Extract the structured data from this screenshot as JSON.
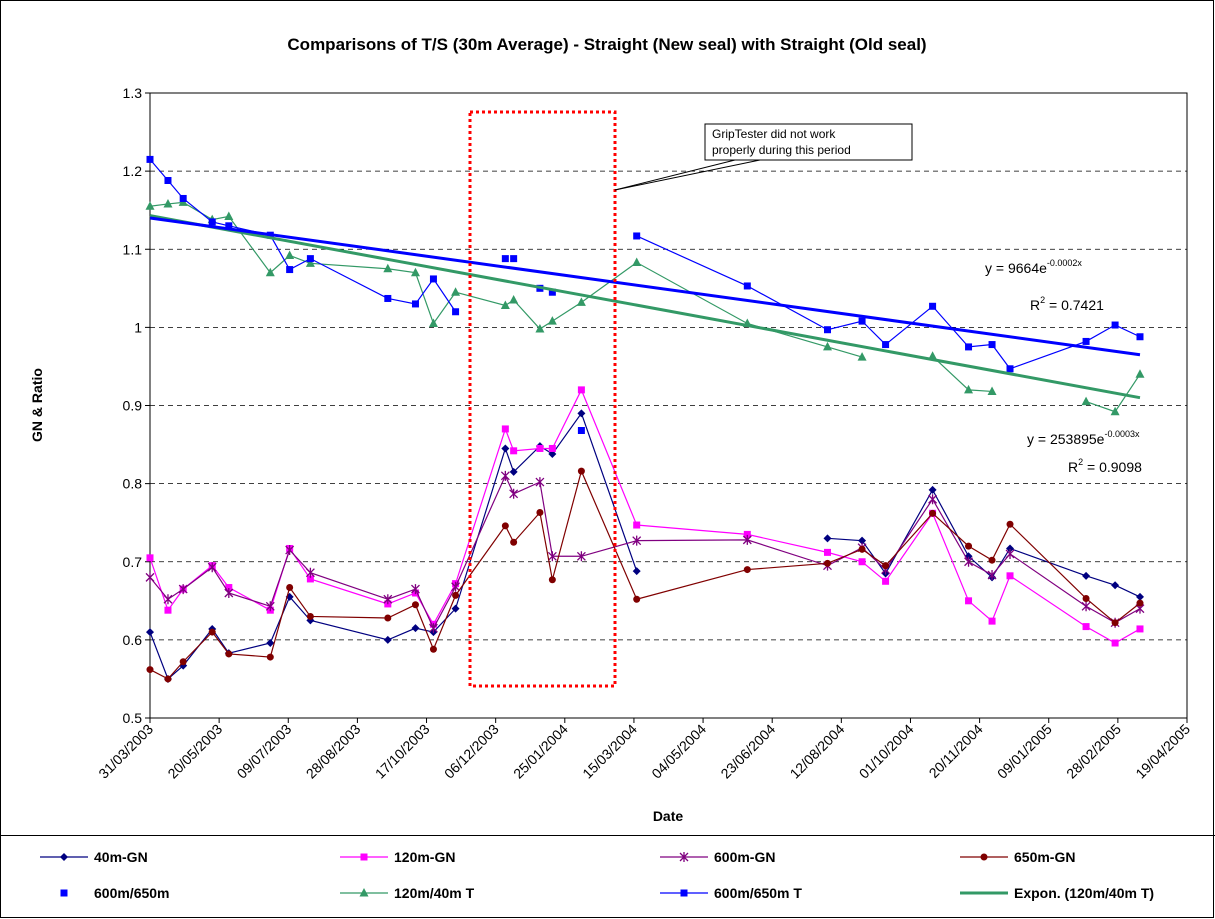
{
  "chart_data": {
    "type": "line",
    "title": "Comparisons of T/S (30m Average) - Straight (New seal) with Straight (Old seal)",
    "x_label": "Date",
    "y_label": "GN & Ratio",
    "x": [
      37711,
      37724,
      37735,
      37756,
      37768,
      37798,
      37812,
      37827,
      37883,
      37903,
      37916,
      37932,
      37968,
      37974,
      37993,
      38002,
      38023,
      38063,
      38143,
      38201,
      38226,
      38243,
      38277,
      38303,
      38320,
      38333,
      38388,
      38409,
      38427
    ],
    "xlim": [
      37711,
      38461
    ],
    "xticks": [
      {
        "value": 37711,
        "label": "31/03/2003"
      },
      {
        "value": 37761,
        "label": "20/05/2003"
      },
      {
        "value": 37811,
        "label": "09/07/2003"
      },
      {
        "value": 37861,
        "label": "28/08/2003"
      },
      {
        "value": 37911,
        "label": "17/10/2003"
      },
      {
        "value": 37961,
        "label": "06/12/2003"
      },
      {
        "value": 38011,
        "label": "25/01/2004"
      },
      {
        "value": 38061,
        "label": "15/03/2004"
      },
      {
        "value": 38111,
        "label": "04/05/2004"
      },
      {
        "value": 38161,
        "label": "23/06/2004"
      },
      {
        "value": 38211,
        "label": "12/08/2004"
      },
      {
        "value": 38261,
        "label": "01/10/2004"
      },
      {
        "value": 38311,
        "label": "20/11/2004"
      },
      {
        "value": 38361,
        "label": "09/01/2005"
      },
      {
        "value": 38411,
        "label": "28/02/2005"
      },
      {
        "value": 38461,
        "label": "19/04/2005"
      }
    ],
    "ylim": [
      0.5,
      1.3
    ],
    "yticks": [
      0.5,
      0.6,
      0.7,
      0.8,
      0.9,
      1,
      1.1,
      1.2,
      1.3
    ],
    "grid": true,
    "series": [
      {
        "name": "40m-GN",
        "color": "#000080",
        "marker": "diamond",
        "values": [
          0.61,
          0.55,
          0.567,
          0.614,
          0.583,
          0.596,
          0.655,
          0.625,
          0.6,
          0.615,
          0.61,
          0.64,
          0.845,
          0.815,
          0.848,
          0.838,
          0.89,
          0.688,
          null,
          0.73,
          0.727,
          0.685,
          0.792,
          0.707,
          0.68,
          0.717,
          0.682,
          0.67,
          0.655
        ]
      },
      {
        "name": "120m-GN",
        "color": "#ff00ff",
        "marker": "square",
        "values": [
          0.705,
          0.638,
          0.665,
          0.695,
          0.667,
          0.638,
          0.717,
          0.678,
          0.646,
          0.66,
          0.62,
          0.672,
          0.87,
          0.842,
          0.845,
          0.845,
          0.92,
          0.747,
          0.735,
          0.712,
          0.7,
          0.675,
          0.762,
          0.65,
          0.624,
          0.682,
          0.617,
          0.596,
          0.614
        ]
      },
      {
        "name": "600m-GN",
        "color": "#800080",
        "marker": "star",
        "values": [
          0.68,
          0.652,
          0.665,
          0.693,
          0.66,
          0.643,
          0.715,
          0.686,
          0.652,
          0.665,
          0.615,
          0.668,
          0.81,
          0.787,
          0.802,
          0.707,
          0.707,
          0.727,
          0.728,
          0.695,
          0.718,
          0.69,
          0.78,
          0.7,
          0.683,
          0.71,
          0.643,
          0.622,
          0.64
        ]
      },
      {
        "name": "650m-GN",
        "color": "#800000",
        "marker": "circle",
        "values": [
          0.562,
          0.55,
          0.572,
          0.61,
          0.582,
          0.578,
          0.667,
          0.63,
          0.628,
          0.645,
          0.588,
          0.657,
          0.746,
          0.725,
          0.763,
          0.677,
          0.816,
          0.652,
          0.69,
          0.698,
          0.716,
          0.695,
          0.762,
          0.72,
          0.702,
          0.748,
          0.653,
          0.622,
          0.647
        ]
      },
      {
        "name": "600m/650m",
        "color": "#0000ff",
        "marker": "square",
        "line": false,
        "values": [
          null,
          null,
          null,
          null,
          null,
          null,
          null,
          null,
          null,
          null,
          null,
          null,
          1.088,
          1.088,
          1.05,
          1.045,
          0.868,
          null,
          null,
          null,
          null,
          null,
          null,
          null,
          null,
          null,
          null,
          null,
          null
        ]
      },
      {
        "name": "120m/40m T",
        "color": "#339966",
        "marker": "triangle",
        "values": [
          1.155,
          1.158,
          1.16,
          1.138,
          1.142,
          1.07,
          1.092,
          1.082,
          1.075,
          1.07,
          1.005,
          1.045,
          1.028,
          1.035,
          0.998,
          1.008,
          1.032,
          1.083,
          1.005,
          0.975,
          0.962,
          null,
          0.963,
          0.92,
          0.918,
          null,
          0.905,
          0.892,
          0.94
        ]
      },
      {
        "name": "600m/650m T",
        "color": "#0000ff",
        "marker": "square",
        "values": [
          1.215,
          1.188,
          1.165,
          1.135,
          1.13,
          1.118,
          1.074,
          1.088,
          1.037,
          1.03,
          1.062,
          1.02,
          null,
          null,
          null,
          null,
          null,
          1.117,
          1.053,
          0.997,
          1.008,
          0.978,
          1.027,
          0.975,
          0.978,
          0.947,
          0.982,
          1.003,
          0.988
        ]
      },
      {
        "name": "Expon. (120m/40m T)",
        "color": "#339966",
        "trend": true,
        "x": [
          37711,
          38427
        ],
        "values": [
          1.143,
          0.91
        ]
      },
      {
        "color": "#0000ff",
        "trend": true,
        "x": [
          37711,
          38427
        ],
        "values": [
          1.14,
          0.965
        ]
      }
    ],
    "annotations": {
      "callout": [
        "GripTester did not work",
        "properly during this period"
      ],
      "blue_equation": {
        "text": "y = 9664e",
        "sup": "-0.0002x"
      },
      "blue_r2": {
        "text": "R",
        "sup": "2",
        "rest": " = 0.7421"
      },
      "green_equation": {
        "text": "y = 253895e",
        "sup": "-0.0003x"
      },
      "green_r2": {
        "text": "R",
        "sup": "2",
        "rest": " = 0.9098"
      }
    }
  }
}
